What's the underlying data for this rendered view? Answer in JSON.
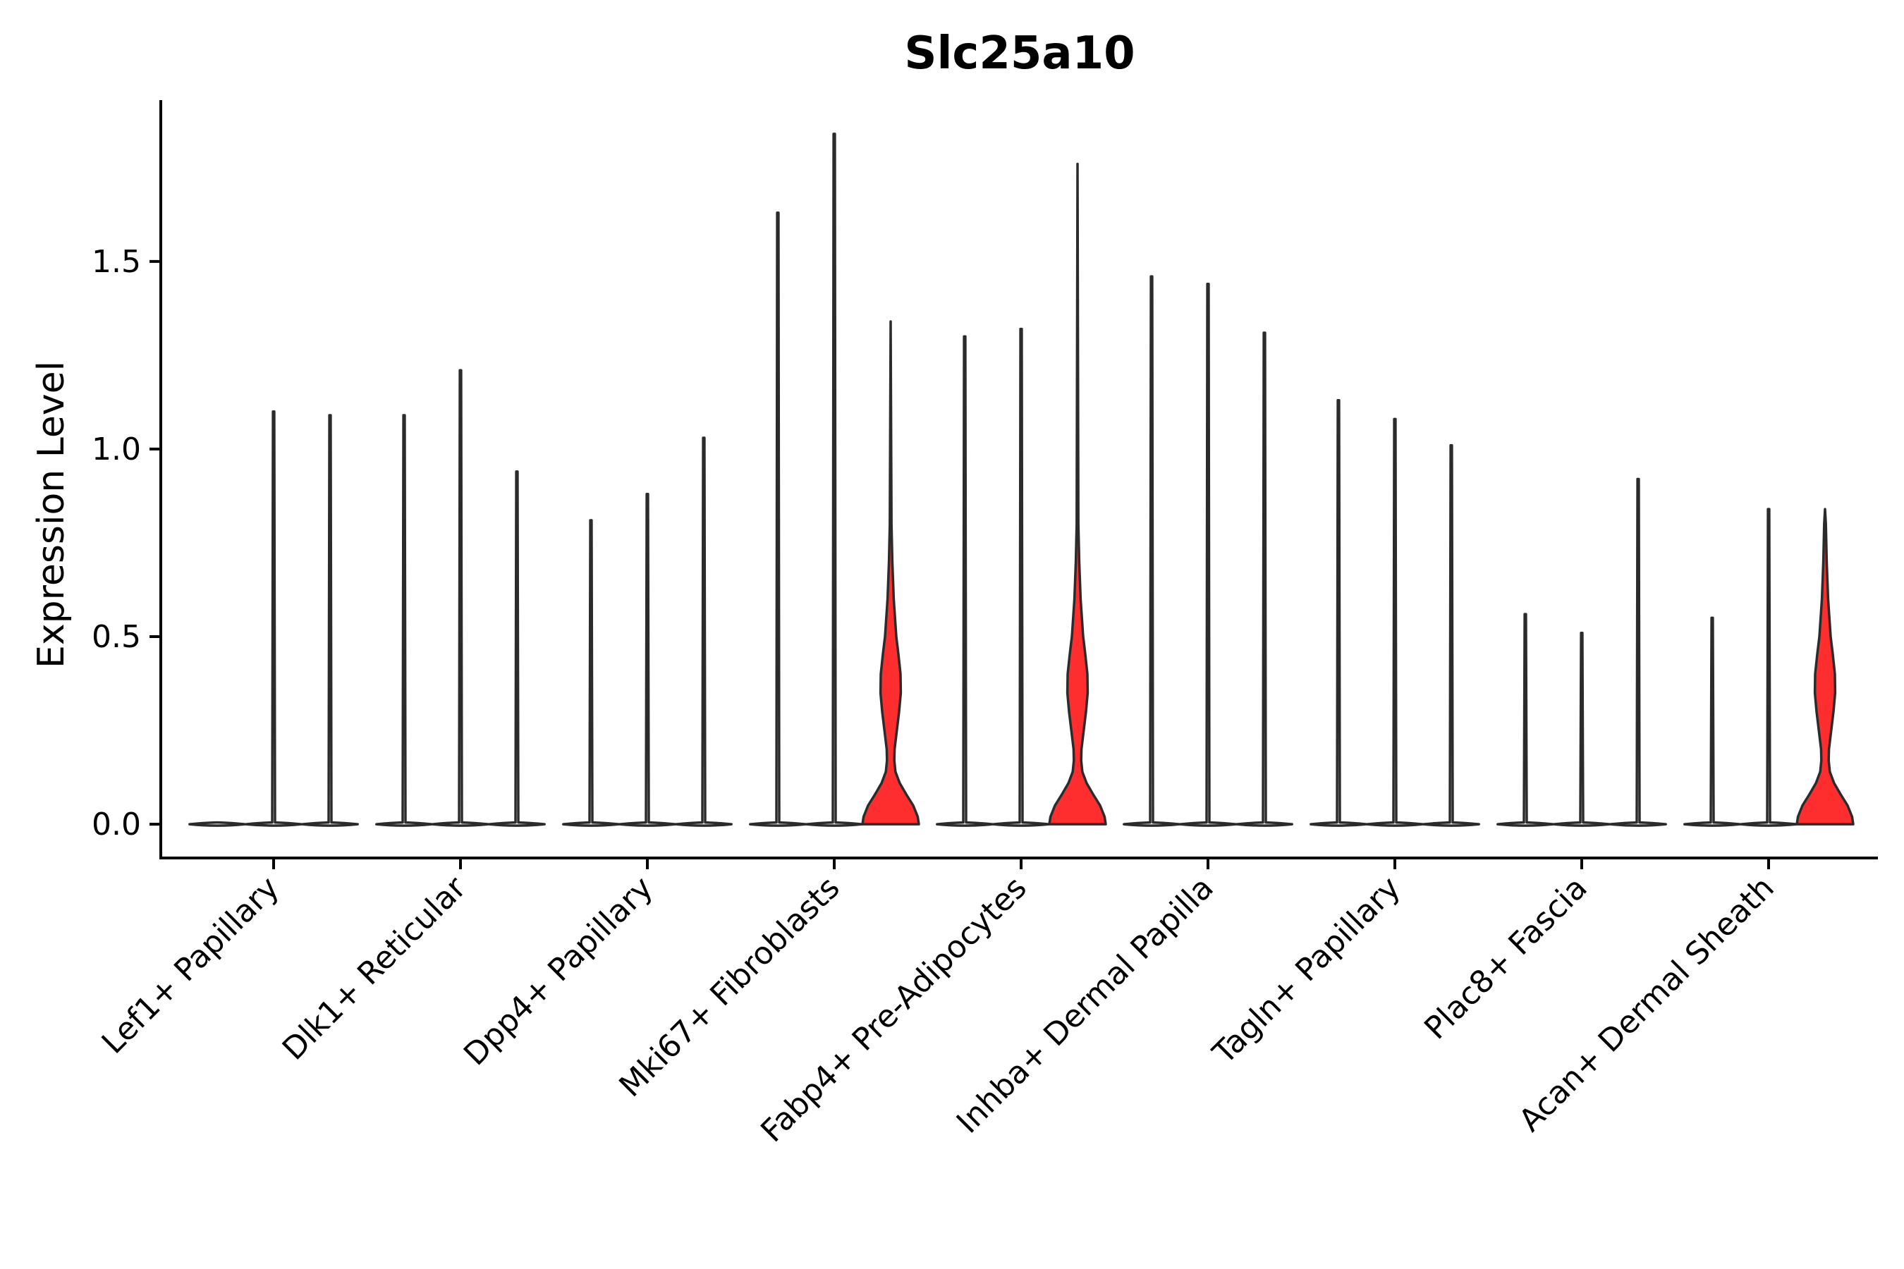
{
  "chart_data": {
    "type": "violin",
    "title": "Slc25a10",
    "xlabel": "",
    "ylabel": "Expression Level",
    "ylim": [
      -0.09,
      1.93
    ],
    "yticks": [
      0.0,
      0.5,
      1.0,
      1.5
    ],
    "ytick_labels": [
      "0.0",
      "0.5",
      "1.0",
      "1.5"
    ],
    "grid": false,
    "legend": "none",
    "colors": {
      "default": "#ffffff",
      "highlight": "#fe2e2e",
      "outline": "#2b2b2b",
      "axis": "#000000"
    },
    "categories": [
      "Lef1+ Papillary",
      "Dlk1+ Reticular",
      "Dpp4+ Papillary",
      "Mki67+ Fibroblasts",
      "Fabp4+ Pre-Adipocytes",
      "Inhba+ Dermal Papilla",
      "Tagln+ Papillary",
      "Plac8+ Fascia",
      "Acan+ Dermal Sheath"
    ],
    "violins_per_category": 3,
    "max_values": [
      [
        null,
        1.1,
        1.09
      ],
      [
        1.09,
        1.21,
        0.94
      ],
      [
        0.81,
        0.88,
        1.03
      ],
      [
        1.63,
        1.84,
        1.34
      ],
      [
        1.3,
        1.32,
        1.76
      ],
      [
        1.46,
        1.44,
        1.31
      ],
      [
        1.13,
        1.08,
        1.01
      ],
      [
        0.56,
        0.51,
        0.92
      ],
      [
        0.55,
        0.84,
        0.84
      ]
    ],
    "highlighted": [
      [
        3,
        2
      ],
      [
        4,
        2
      ],
      [
        8,
        2
      ]
    ]
  }
}
